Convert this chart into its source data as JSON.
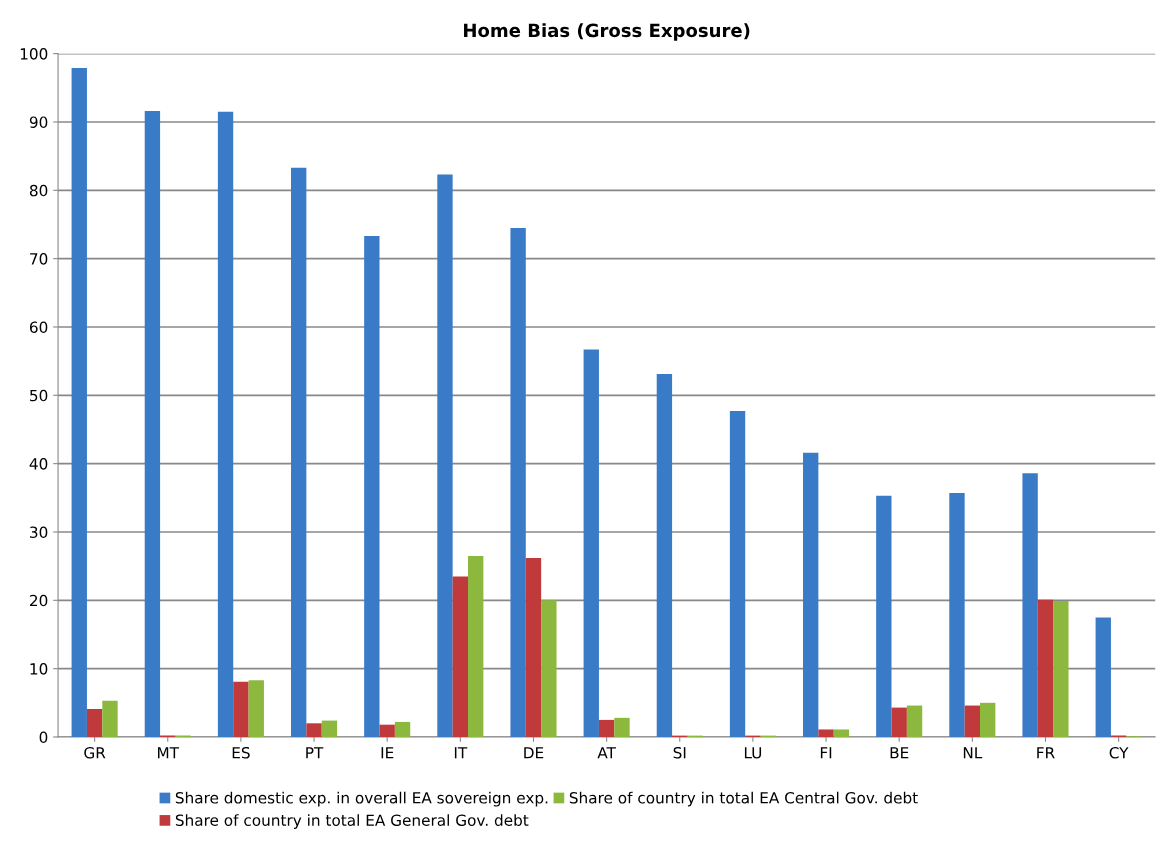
{
  "chart_data": {
    "type": "bar",
    "title": "Home Bias (Gross Exposure)",
    "categories": [
      "GR",
      "MT",
      "ES",
      "PT",
      "IE",
      "IT",
      "DE",
      "AT",
      "SI",
      "LU",
      "FI",
      "BE",
      "NL",
      "FR",
      "CY"
    ],
    "series": [
      {
        "name": "Share domestic exp. in overall EA sovereign exp.",
        "color": "#3a7bc8",
        "values": [
          97.9,
          91.6,
          91.5,
          83.3,
          73.3,
          82.3,
          74.5,
          56.7,
          53.1,
          47.7,
          41.6,
          35.3,
          35.7,
          38.6,
          17.5
        ]
      },
      {
        "name": "Share of country in total EA General Gov. debt",
        "color": "#c0393b",
        "values": [
          4.1,
          0.2,
          8.1,
          2.0,
          1.8,
          23.5,
          26.2,
          2.5,
          0.2,
          0.2,
          1.1,
          4.3,
          4.6,
          20.1,
          0.2
        ]
      },
      {
        "name": "Share of country in total EA Central Gov. debt",
        "color": "#8db83e",
        "values": [
          5.3,
          0.2,
          8.3,
          2.4,
          2.2,
          26.5,
          20.0,
          2.8,
          0.2,
          0.2,
          1.1,
          4.6,
          5.0,
          19.9,
          0.1
        ]
      }
    ],
    "ylim": [
      0,
      100
    ],
    "yticks": [
      0,
      10,
      20,
      30,
      40,
      50,
      60,
      70,
      80,
      90,
      100
    ],
    "grid": "y",
    "legend": "bottom"
  }
}
